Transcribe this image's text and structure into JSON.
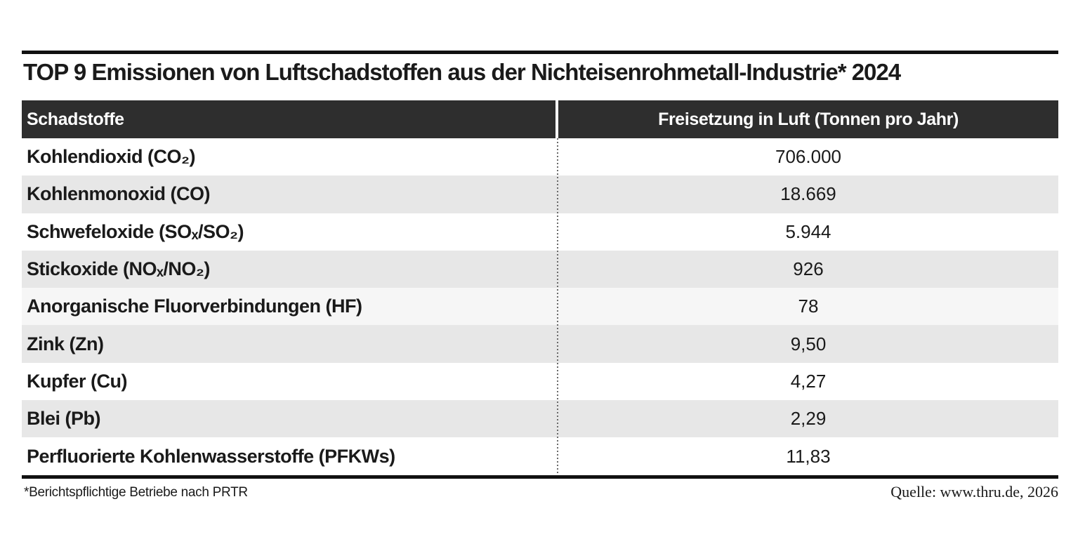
{
  "title": "TOP 9 Emissionen von Luftschadstoffen aus der Nichteisenrohmetall-Industrie* 2024",
  "table": {
    "header": {
      "pollutant": "Schadstoffe",
      "value": "Freisetzung in Luft (Tonnen pro Jahr)"
    },
    "rows": [
      {
        "pollutant": "Kohlendioxid (CO₂)",
        "value": "706.000"
      },
      {
        "pollutant": "Kohlenmonoxid (CO)",
        "value": "18.669"
      },
      {
        "pollutant": "Schwefeloxide (SOₓ/SO₂)",
        "value": "5.944"
      },
      {
        "pollutant": "Stickoxide (NOₓ/NO₂)",
        "value": "926"
      },
      {
        "pollutant": "Anorganische Fluorverbindungen (HF)",
        "value": "78"
      },
      {
        "pollutant": "Zink (Zn)",
        "value": "9,50"
      },
      {
        "pollutant": "Kupfer (Cu)",
        "value": "4,27"
      },
      {
        "pollutant": "Blei (Pb)",
        "value": "2,29"
      },
      {
        "pollutant": "Perfluorierte Kohlenwasserstoffe (PFKWs)",
        "value": "11,83"
      }
    ]
  },
  "footer": {
    "note": "*Berichtspflichtige Betriebe nach PRTR",
    "source": "Quelle: www.thru.de, 2026"
  },
  "colors": {
    "header_bg": "#2e2e2e",
    "header_text": "#ffffff",
    "row_stripe": "#e7e7e7",
    "row_light": "#f6f6f6",
    "rule": "#111111",
    "text": "#1a1a1a"
  },
  "chart_data": {
    "type": "table",
    "title": "TOP 9 Emissionen von Luftschadstoffen aus der Nichteisenrohmetall-Industrie* 2024",
    "columns": [
      "Schadstoffe",
      "Freisetzung in Luft (Tonnen pro Jahr)"
    ],
    "categories": [
      "Kohlendioxid (CO2)",
      "Kohlenmonoxid (CO)",
      "Schwefeloxide (SOx/SO2)",
      "Stickoxide (NOx/NO2)",
      "Anorganische Fluorverbindungen (HF)",
      "Zink (Zn)",
      "Kupfer (Cu)",
      "Blei (Pb)",
      "Perfluorierte Kohlenwasserstoffe (PFKWs)"
    ],
    "values": [
      706000,
      18669,
      5944,
      926,
      78,
      9.5,
      4.27,
      2.29,
      11.83
    ],
    "values_displayed": [
      "706.000",
      "18.669",
      "5.944",
      "926",
      "78",
      "9,50",
      "4,27",
      "2,29",
      "11,83"
    ],
    "unit": "Tonnen pro Jahr",
    "note": "*Berichtspflichtige Betriebe nach PRTR",
    "source": "Quelle: www.thru.de, 2026"
  }
}
